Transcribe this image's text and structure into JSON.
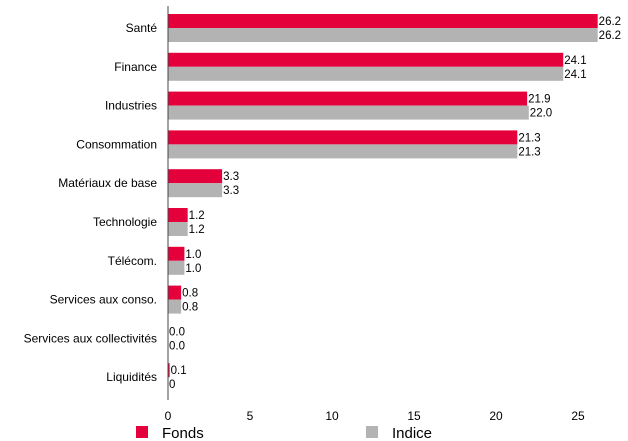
{
  "chart_data": {
    "type": "bar",
    "orientation": "horizontal",
    "categories": [
      "Santé",
      "Finance",
      "Industries",
      "Consommation",
      "Matériaux de base",
      "Technologie",
      "Télécom.",
      "Services aux conso.",
      "Services aux collectivités",
      "Liquidités"
    ],
    "series": [
      {
        "name": "Fonds",
        "color": "#e4003b",
        "values": [
          26.2,
          24.1,
          21.9,
          21.3,
          3.3,
          1.2,
          1.0,
          0.8,
          0.0,
          0.1
        ],
        "labels": [
          "26.2",
          "24.1",
          "21.9",
          "21.3",
          "3.3",
          "1.2",
          "1.0",
          "0.8",
          "0.0",
          "0.1"
        ]
      },
      {
        "name": "Indice",
        "color": "#b3b3b3",
        "values": [
          26.2,
          24.1,
          22.0,
          21.3,
          3.3,
          1.2,
          1.0,
          0.8,
          0.0,
          0
        ],
        "labels": [
          "26.2",
          "24.1",
          "22.0",
          "21.3",
          "3.3",
          "1.2",
          "1.0",
          "0.8",
          "0.0",
          "0"
        ]
      }
    ],
    "xlim": [
      0,
      28
    ],
    "xticks": [
      "0",
      "5",
      "10",
      "15",
      "20",
      "25"
    ],
    "legend_position": "bottom",
    "grid": false
  }
}
